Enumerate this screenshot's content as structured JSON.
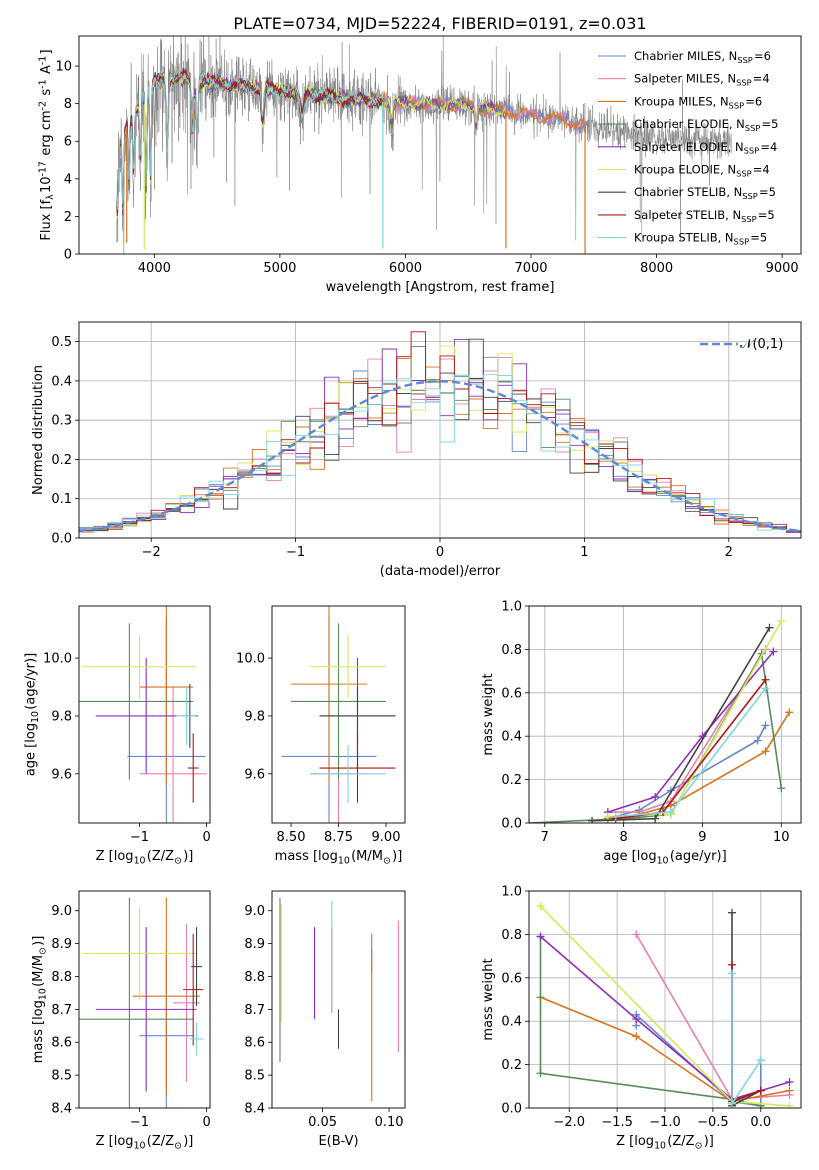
{
  "title": "PLATE=0734, MJD=52224, FIBERID=0191, z=0.031",
  "colors": [
    "#6688cc",
    "#e87fb0",
    "#d9731e",
    "#5a8a5a",
    "#8e2fb8",
    "#d4e85a",
    "#444444",
    "#b01515",
    "#7fd6e0"
  ],
  "legend_labels": [
    "Chabrier MILES, N$_{SSP}$=6",
    "Salpeter MILES, N$_{SSP}$=4",
    "Kroupa MILES, N$_{SSP}$=6",
    "Chabrier ELODIE, N$_{SSP}$=5",
    "Salpeter ELODIE, N$_{SSP}$=4",
    "Kroupa ELODIE, N$_{SSP}$=4",
    "Chabrier STELIB, N$_{SSP}$=5",
    "Salpeter STELIB, N$_{SSP}$=5",
    "Kroupa STELIB, N$_{SSP}$=5"
  ],
  "chart_data": [
    {
      "id": "spectrum",
      "type": "line",
      "xlabel": "wavelength [Angstrom, rest frame]",
      "ylabel": "Flux [f$_\\lambda$10$^{-17}$ erg cm$^{-2}$ s$^{-1}$ A$^{-1}$]",
      "xlim": [
        3400,
        9150
      ],
      "ylim": [
        0,
        11.6
      ],
      "xticks": [
        4000,
        5000,
        6000,
        7000,
        8000,
        9000
      ],
      "yticks": [
        0,
        2,
        4,
        6,
        8,
        10
      ],
      "grid": false,
      "legend": "upper right",
      "data_color": "#808080",
      "model_ranges": [
        [
          3700,
          7430
        ],
        [
          3700,
          7430
        ],
        [
          3700,
          7430
        ],
        [
          3700,
          6800
        ],
        [
          3700,
          6800
        ],
        [
          3700,
          6800
        ],
        [
          3700,
          5830
        ],
        [
          3700,
          5830
        ],
        [
          3700,
          5830
        ]
      ],
      "continuum": {
        "x": [
          3700,
          3800,
          4000,
          4200,
          4500,
          5000,
          5500,
          6000,
          6500,
          7000,
          7500,
          8000,
          8500,
          8600
        ],
        "y": [
          5.5,
          7.0,
          9.2,
          9.4,
          9.1,
          8.7,
          8.3,
          8.0,
          7.9,
          7.4,
          6.8,
          6.2,
          6.0,
          6.0
        ]
      },
      "dips": [
        {
          "x": 3705,
          "depth": 3.5,
          "w": 8
        },
        {
          "x": 3750,
          "depth": 4.0,
          "w": 6
        },
        {
          "x": 3798,
          "depth": 3.0,
          "w": 6
        },
        {
          "x": 3835,
          "depth": 3.0,
          "w": 6
        },
        {
          "x": 3889,
          "depth": 3.0,
          "w": 6
        },
        {
          "x": 3934,
          "depth": 5.0,
          "w": 6
        },
        {
          "x": 3969,
          "depth": 5.0,
          "w": 6
        },
        {
          "x": 4102,
          "depth": 3.5,
          "w": 8
        },
        {
          "x": 4305,
          "depth": 2.5,
          "w": 10
        },
        {
          "x": 4340,
          "depth": 3.0,
          "w": 8
        },
        {
          "x": 4861,
          "depth": 1.8,
          "w": 10
        },
        {
          "x": 5175,
          "depth": 1.2,
          "w": 14
        },
        {
          "x": 5890,
          "depth": 1.2,
          "w": 8
        },
        {
          "x": 6563,
          "depth": 0.9,
          "w": 8
        }
      ],
      "model_cliffs": [
        {
          "series": 2,
          "x": 3780,
          "y": 0.6
        },
        {
          "series": 5,
          "x": 3920,
          "y": 0.2
        },
        {
          "series": 8,
          "x": 5820,
          "y": 0.3
        },
        {
          "series": 2,
          "x": 6800,
          "y": 0.3
        },
        {
          "series": 2,
          "x": 7430,
          "y": 0.0
        }
      ]
    },
    {
      "id": "residuals",
      "type": "line",
      "xlabel": "(data-model)/error",
      "ylabel": "Normed distribution",
      "xlim": [
        -2.5,
        2.5
      ],
      "ylim": [
        0,
        0.55
      ],
      "xticks": [
        -2,
        -1,
        0,
        1,
        2
      ],
      "yticks": [
        0.0,
        0.1,
        0.2,
        0.3,
        0.4,
        0.5
      ],
      "grid": true,
      "legend": "upper right",
      "gauss_label": "$\\mathcal{N}(0,1)$",
      "gauss_color": "#5b8bd6",
      "bin_width": 0.1
    },
    {
      "id": "z-age",
      "type": "scatter",
      "xlabel": "Z [log$_{10}$(Z/Z$_\\odot$)]",
      "ylabel": "age  [log$_{10}$(age/yr)]",
      "xlim": [
        -1.9,
        0.05
      ],
      "ylim": [
        9.43,
        10.18
      ],
      "xticks": [
        -1,
        0
      ],
      "xticklabels": [
        "−1",
        "0"
      ],
      "yticks": [
        9.6,
        9.8,
        10.0
      ],
      "grid": false,
      "points": [
        {
          "x": -0.6,
          "xe": 0.58,
          "y": 9.66,
          "ye": 0.48
        },
        {
          "x": -0.5,
          "xe": 0.5,
          "y": 9.6,
          "ye": 0.3
        },
        {
          "x": -0.6,
          "xe": 0.4,
          "y": 9.9,
          "ye": 0.34
        },
        {
          "x": -1.15,
          "xe": 0.95,
          "y": 9.85,
          "ye": 0.27
        },
        {
          "x": -0.9,
          "xe": 0.75,
          "y": 9.8,
          "ye": 0.2
        },
        {
          "x": -1.0,
          "xe": 0.85,
          "y": 9.97,
          "ye": 0.11
        },
        {
          "x": -0.25,
          "xe": 0.12,
          "y": 9.8,
          "ye": 0.11
        },
        {
          "x": -0.2,
          "xe": 0.08,
          "y": 9.62,
          "ye": 0.12
        },
        {
          "x": -0.3,
          "xe": 0.15,
          "y": 9.8,
          "ye": 0.1
        }
      ]
    },
    {
      "id": "mass-age",
      "type": "scatter",
      "xlabel": "mass [log$_{10}$(M/M$_\\odot$)]",
      "ylabel": "",
      "xlim": [
        8.4,
        9.1
      ],
      "ylim": [
        9.43,
        10.18
      ],
      "xticks": [
        8.5,
        8.75,
        9.0
      ],
      "xticklabels": [
        "8.50",
        "8.75",
        "9.00"
      ],
      "yticks": [
        9.6,
        9.8,
        10.0
      ],
      "grid": false,
      "points": [
        {
          "x": 8.7,
          "xe": 0.25,
          "y": 9.66,
          "ye": 0.48
        },
        {
          "x": 8.75,
          "xe": 0.15,
          "y": 9.6,
          "ye": 0.3
        },
        {
          "x": 8.7,
          "xe": 0.2,
          "y": 9.91,
          "ye": 0.34
        },
        {
          "x": 8.75,
          "xe": 0.25,
          "y": 9.85,
          "ye": 0.27
        },
        {
          "x": 8.85,
          "xe": 0.2,
          "y": 9.8,
          "ye": 0.2
        },
        {
          "x": 8.8,
          "xe": 0.2,
          "y": 9.97,
          "ye": 0.11
        },
        {
          "x": 8.85,
          "xe": 0.2,
          "y": 9.8,
          "ye": 0.1
        },
        {
          "x": 8.85,
          "xe": 0.2,
          "y": 9.62,
          "ye": 0.12
        },
        {
          "x": 8.8,
          "xe": 0.2,
          "y": 9.6,
          "ye": 0.1
        }
      ]
    },
    {
      "id": "agemw",
      "type": "line",
      "xlabel": "age  [log$_{10}$(age/yr)]",
      "ylabel": "mass weight",
      "xlim": [
        6.8,
        10.25
      ],
      "ylim": [
        0,
        1
      ],
      "xticks": [
        7,
        8,
        9,
        10
      ],
      "yticks": [
        0.0,
        0.2,
        0.4,
        0.6,
        0.8,
        1.0
      ],
      "grid": true,
      "series": [
        {
          "x": [
            7.8,
            8.2,
            8.6,
            9.7,
            9.8
          ],
          "y": [
            0.02,
            0.06,
            0.15,
            0.38,
            0.45
          ]
        },
        {
          "x": [
            7.8,
            8.2,
            8.6,
            9.8
          ],
          "y": [
            0.05,
            0.05,
            0.1,
            0.8
          ]
        },
        {
          "x": [
            7.8,
            8.2,
            8.6,
            9.8,
            10.1
          ],
          "y": [
            0.02,
            0.04,
            0.08,
            0.33,
            0.51
          ]
        },
        {
          "x": [
            6.8,
            8.0,
            8.6,
            9.75,
            10.0
          ],
          "y": [
            0.0,
            0.02,
            0.04,
            0.78,
            0.16
          ]
        },
        {
          "x": [
            7.8,
            8.4,
            9.0,
            9.9
          ],
          "y": [
            0.05,
            0.12,
            0.4,
            0.79
          ]
        },
        {
          "x": [
            7.8,
            8.6,
            10.0
          ],
          "y": [
            0.03,
            0.04,
            0.93
          ]
        },
        {
          "x": [
            7.6,
            8.4,
            9.85
          ],
          "y": [
            0.01,
            0.02,
            0.9
          ]
        },
        {
          "x": [
            7.9,
            8.5,
            9.8
          ],
          "y": [
            0.02,
            0.05,
            0.66
          ]
        },
        {
          "x": [
            7.9,
            8.6,
            9.8
          ],
          "y": [
            0.03,
            0.05,
            0.62
          ]
        }
      ]
    },
    {
      "id": "z-mass",
      "type": "scatter",
      "xlabel": "Z [log$_{10}$(Z/Z$_\\odot$)]",
      "ylabel": "mass [log$_{10}$(M/M$_\\odot$)]",
      "xlim": [
        -1.9,
        0.05
      ],
      "ylim": [
        8.4,
        9.06
      ],
      "xticks": [
        -1,
        0
      ],
      "xticklabels": [
        "−1",
        "0"
      ],
      "yticks": [
        8.4,
        8.5,
        8.6,
        8.7,
        8.8,
        8.9,
        9.0
      ],
      "grid": false,
      "points": [
        {
          "x": -0.6,
          "xe": 0.4,
          "y": 8.62,
          "ye": 0.26
        },
        {
          "x": -0.3,
          "xe": 0.2,
          "y": 8.72,
          "ye": 0.24
        },
        {
          "x": -0.6,
          "xe": 0.5,
          "y": 8.74,
          "ye": 0.3
        },
        {
          "x": -1.15,
          "xe": 0.95,
          "y": 8.67,
          "ye": 0.37
        },
        {
          "x": -0.9,
          "xe": 0.75,
          "y": 8.7,
          "ye": 0.25
        },
        {
          "x": -1.0,
          "xe": 0.85,
          "y": 8.87,
          "ye": 0.14
        },
        {
          "x": -0.15,
          "xe": 0.08,
          "y": 8.83,
          "ye": 0.12
        },
        {
          "x": -0.2,
          "xe": 0.15,
          "y": 8.76,
          "ye": 0.17
        },
        {
          "x": -0.15,
          "xe": 0.1,
          "y": 8.61,
          "ye": 0.05
        }
      ]
    },
    {
      "id": "ebv-mass",
      "type": "scatter",
      "xlabel": "E(B-V)",
      "ylabel": "",
      "xlim": [
        0.012,
        0.112
      ],
      "ylim": [
        8.4,
        9.06
      ],
      "xticks": [
        0.05,
        0.1
      ],
      "xticklabels": [
        "0.05",
        "0.10"
      ],
      "yticks": [
        8.4,
        8.5,
        8.6,
        8.7,
        8.8,
        8.9,
        9.0
      ],
      "grid": false,
      "points": [
        {
          "x": 0.087,
          "y": 8.87,
          "ye": 0.06
        },
        {
          "x": 0.107,
          "y": 8.77,
          "ye": 0.2
        },
        {
          "x": 0.087,
          "y": 8.65,
          "ye": 0.23
        },
        {
          "x": 0.018,
          "y": 8.79,
          "ye": 0.25
        },
        {
          "x": 0.044,
          "y": 8.81,
          "ye": 0.14
        },
        {
          "x": 0.019,
          "y": 8.84,
          "ye": 0.18
        },
        {
          "x": 0.062,
          "y": 8.64,
          "ye": 0.06
        },
        {
          "x": 0.057,
          "y": 8.82,
          "ye": 0.13
        },
        {
          "x": 0.057,
          "y": 8.86,
          "ye": 0.17
        }
      ]
    },
    {
      "id": "zmw",
      "type": "line",
      "xlabel": "Z [log$_{10}$(Z/Z$_\\odot$)]",
      "ylabel": "mass weight",
      "xlim": [
        -2.42,
        0.42
      ],
      "ylim": [
        0,
        1
      ],
      "xticks": [
        -2.0,
        -1.5,
        -1.0,
        -0.5,
        0.0
      ],
      "xticklabels": [
        "−2.0",
        "−1.5",
        "−1.0",
        "−0.5",
        "0.0"
      ],
      "yticks": [
        0.0,
        0.2,
        0.4,
        0.6,
        0.8,
        1.0
      ],
      "grid": true,
      "series": [
        {
          "x": [
            -1.3,
            -1.3,
            -0.3,
            0.0,
            0.0
          ],
          "y": [
            0.38,
            0.43,
            0.03,
            0.01,
            0.22
          ]
        },
        {
          "x": [
            -1.3,
            -0.3,
            0.3
          ],
          "y": [
            0.8,
            0.04,
            0.06
          ]
        },
        {
          "x": [
            -2.3,
            -1.3,
            -0.3,
            0.3
          ],
          "y": [
            0.51,
            0.33,
            0.03,
            0.08
          ]
        },
        {
          "x": [
            -2.3,
            -2.3,
            -0.3,
            0.0
          ],
          "y": [
            0.79,
            0.16,
            0.04,
            0.01
          ]
        },
        {
          "x": [
            -2.3,
            -1.3,
            -0.3,
            0.3
          ],
          "y": [
            0.79,
            0.41,
            0.04,
            0.12
          ]
        },
        {
          "x": [
            -2.3,
            -0.3,
            0.3
          ],
          "y": [
            0.93,
            0.03,
            0.01
          ]
        },
        {
          "x": [
            -0.3,
            -0.3,
            0.0
          ],
          "y": [
            0.9,
            0.01,
            0.08
          ]
        },
        {
          "x": [
            -0.3,
            -0.3,
            0.0
          ],
          "y": [
            0.66,
            0.03,
            0.08
          ]
        },
        {
          "x": [
            -0.3,
            -0.3,
            0.0
          ],
          "y": [
            0.62,
            0.02,
            0.22
          ]
        }
      ]
    }
  ]
}
